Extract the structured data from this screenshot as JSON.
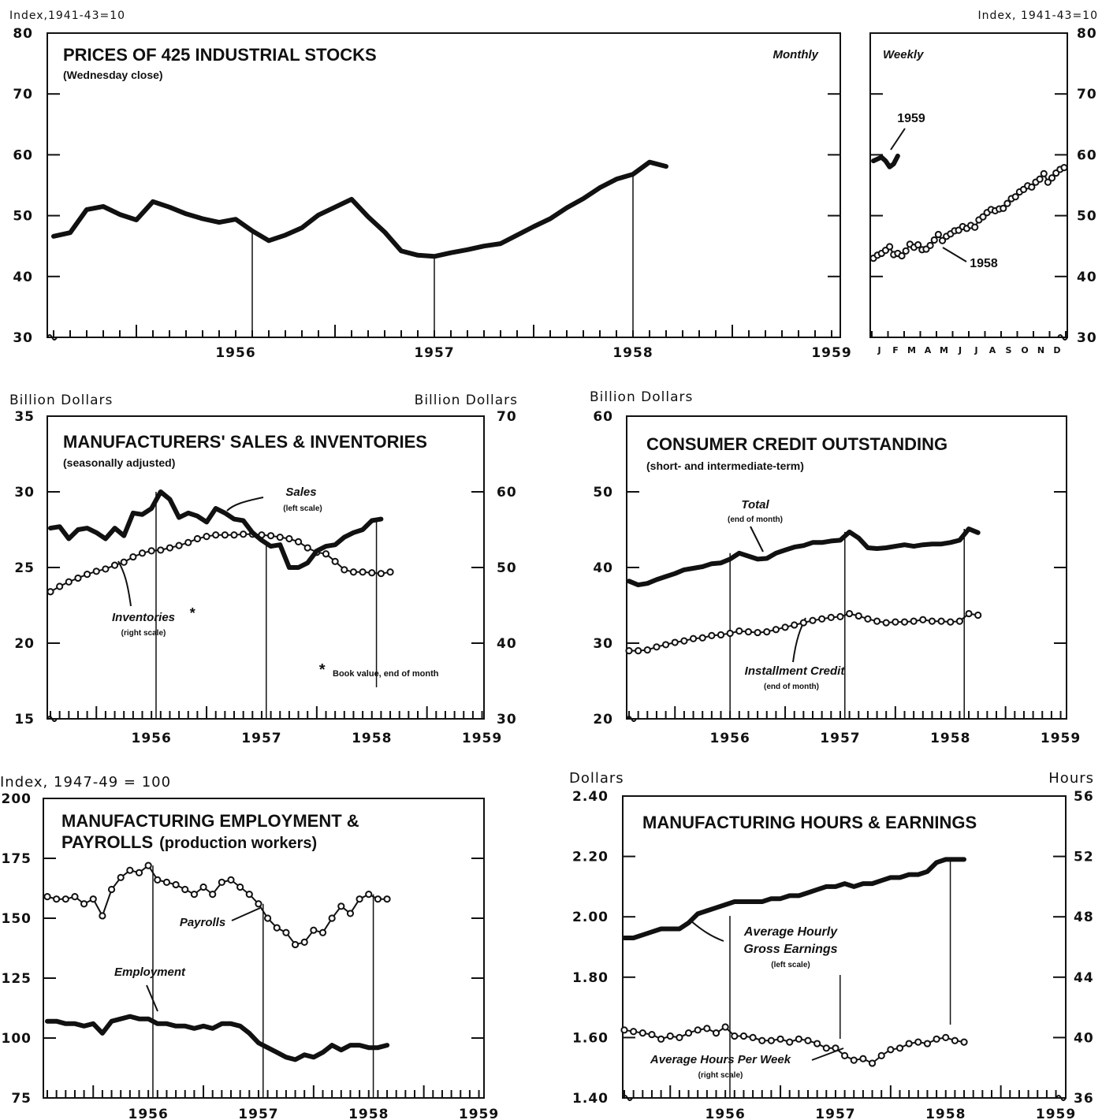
{
  "charts": {
    "stocks": {
      "title": "PRICES OF 425 INDUSTRIAL STOCKS",
      "subtitle": "(Wednesday close)",
      "left_unit": "Index,1941-43=10",
      "right_unit": "Index, 1941-43=10",
      "monthly_label": "Monthly",
      "weekly_label": "Weekly",
      "label_1959": "1959",
      "label_1958": "1958",
      "yticks": [
        "30",
        "40",
        "50",
        "60",
        "70",
        "80"
      ],
      "years": [
        "1956",
        "1957",
        "1958",
        "1959"
      ],
      "months": [
        "J",
        "F",
        "M",
        "A",
        "M",
        "J",
        "J",
        "A",
        "S",
        "O",
        "N",
        "D"
      ]
    },
    "sales": {
      "title": "MANUFACTURERS' SALES & INVENTORIES",
      "subtitle": "(seasonally adjusted)",
      "left_unit": "Billion Dollars",
      "right_unit": "Billion Dollars",
      "left_ticks": [
        "15",
        "20",
        "25",
        "30",
        "35"
      ],
      "right_ticks": [
        "30",
        "40",
        "50",
        "60",
        "70"
      ],
      "sales_label": "Sales",
      "sales_note": "(left scale)",
      "inv_label": "Inventories",
      "inv_star": "*",
      "inv_note": "(right scale)",
      "footnote_star": "*",
      "footnote": "Book value, end of month",
      "years": [
        "1956",
        "1957",
        "1958",
        "1959"
      ]
    },
    "credit": {
      "title": "CONSUMER CREDIT OUTSTANDING",
      "subtitle": "(short- and intermediate-term)",
      "left_unit": "Billion Dollars",
      "left_ticks": [
        "20",
        "30",
        "40",
        "50",
        "60"
      ],
      "total_label": "Total",
      "total_note": "(end of month)",
      "inst_label": "Installment Credit",
      "inst_note": "(end of month)",
      "years": [
        "1956",
        "1957",
        "1958",
        "1959"
      ]
    },
    "employment": {
      "title1": "MANUFACTURING EMPLOYMENT &",
      "title2": "PAYROLLS",
      "title2b": "(production workers)",
      "left_unit": "Index, 1947-49 = 100",
      "left_ticks": [
        "75",
        "100",
        "125",
        "150",
        "175",
        "200"
      ],
      "payrolls_label": "Payrolls",
      "employment_label": "Employment",
      "years": [
        "1956",
        "1957",
        "1958",
        "1959"
      ]
    },
    "hours": {
      "title": "MANUFACTURING HOURS & EARNINGS",
      "left_unit": "Dollars",
      "right_unit": "Hours",
      "left_ticks": [
        "1.40",
        "1.60",
        "1.80",
        "2.00",
        "2.20",
        "2.40"
      ],
      "right_ticks": [
        "36",
        "40",
        "44",
        "48",
        "52",
        "56"
      ],
      "earn_label1": "Average Hourly",
      "earn_label2": "Gross Earnings",
      "earn_note": "(left scale)",
      "hours_label": "Average Hours Per Week",
      "hours_note": "(right scale)",
      "years": [
        "1956",
        "1957",
        "1958",
        "1959"
      ]
    }
  },
  "chart_data": [
    {
      "type": "line",
      "title": "PRICES OF 425 INDUSTRIAL STOCKS (Monthly)",
      "ylabel": "Index,1941-43=10",
      "ylim": [
        30,
        80
      ],
      "x_start": "1955-08",
      "series": [
        {
          "name": "Monthly",
          "values": [
            46.6,
            47.2,
            51.0,
            51.5,
            50.2,
            49.3,
            52.3,
            51.4,
            50.3,
            49.5,
            48.9,
            49.4,
            47.5,
            45.9,
            46.8,
            48.0,
            50.1,
            51.4,
            52.7,
            49.8,
            47.3,
            44.2,
            43.5,
            43.3,
            43.9,
            44.4,
            45.0,
            45.4,
            46.8,
            48.2,
            49.5,
            51.3,
            52.8,
            54.6,
            56.0,
            56.8,
            58.8,
            58.1
          ]
        }
      ]
    },
    {
      "type": "line",
      "title": "PRICES OF 425 INDUSTRIAL STOCKS (Weekly)",
      "ylabel": "Index, 1941-43=10",
      "ylim": [
        30,
        80
      ],
      "series": [
        {
          "name": "1958",
          "values": [
            43.0,
            43.5,
            43.8,
            44.3,
            44.9,
            43.6,
            43.8,
            43.4,
            44.2,
            45.3,
            44.8,
            45.2,
            44.4,
            44.5,
            45.1,
            46.0,
            46.9,
            45.9,
            46.6,
            47.0,
            47.5,
            47.6,
            48.2,
            47.9,
            48.4,
            48.1,
            49.3,
            49.8,
            50.5,
            51.0,
            50.8,
            51.1,
            51.2,
            52.0,
            52.8,
            53.1,
            53.9,
            54.3,
            54.9,
            54.7,
            55.5,
            56.0,
            56.9,
            55.5,
            56.2,
            57.0,
            57.6,
            57.9
          ]
        },
        {
          "name": "1959",
          "values": [
            59.0,
            59.3,
            59.6,
            59.0,
            58.0,
            58.5,
            59.8
          ]
        }
      ]
    },
    {
      "type": "line",
      "title": "MANUFACTURERS' SALES & INVENTORIES",
      "x_start": "1955-08",
      "series": [
        {
          "name": "Sales",
          "axis": "left",
          "ylim": [
            15,
            35
          ],
          "values": [
            27.6,
            27.7,
            26.9,
            27.5,
            27.6,
            27.3,
            26.9,
            27.6,
            27.1,
            28.6,
            28.5,
            28.9,
            30.0,
            29.5,
            28.3,
            28.6,
            28.4,
            28.0,
            28.9,
            28.6,
            28.2,
            28.1,
            27.3,
            26.8,
            26.4,
            26.5,
            25.0,
            25.0,
            25.3,
            26.1,
            26.4,
            26.5,
            27.0,
            27.3,
            27.5,
            28.1,
            28.2
          ]
        },
        {
          "name": "Inventories",
          "axis": "right",
          "ylim": [
            30,
            70
          ],
          "values": [
            46.8,
            47.5,
            48.1,
            48.6,
            49.1,
            49.5,
            49.8,
            50.3,
            50.7,
            51.4,
            51.9,
            52.2,
            52.3,
            52.6,
            52.9,
            53.3,
            53.8,
            54.1,
            54.3,
            54.3,
            54.3,
            54.4,
            54.4,
            54.3,
            54.2,
            54.0,
            53.8,
            53.4,
            52.6,
            52.0,
            51.8,
            50.8,
            49.7,
            49.4,
            49.4,
            49.3,
            49.2,
            49.4
          ]
        }
      ]
    },
    {
      "type": "line",
      "title": "CONSUMER CREDIT OUTSTANDING",
      "ylabel": "Billion Dollars",
      "ylim": [
        20,
        60
      ],
      "x_start": "1955-08",
      "series": [
        {
          "name": "Total",
          "values": [
            38.2,
            37.7,
            37.9,
            38.4,
            38.8,
            39.2,
            39.7,
            39.9,
            40.1,
            40.5,
            40.6,
            41.1,
            41.9,
            41.5,
            41.1,
            41.2,
            41.9,
            42.3,
            42.7,
            42.9,
            43.3,
            43.3,
            43.5,
            43.6,
            44.7,
            43.9,
            42.6,
            42.5,
            42.6,
            42.8,
            43.0,
            42.8,
            43.0,
            43.1,
            43.1,
            43.3,
            43.6,
            45.1,
            44.6
          ]
        },
        {
          "name": "Installment Credit",
          "values": [
            29.0,
            29.0,
            29.1,
            29.5,
            29.8,
            30.1,
            30.3,
            30.6,
            30.7,
            31.0,
            31.1,
            31.3,
            31.6,
            31.5,
            31.4,
            31.5,
            31.8,
            32.1,
            32.4,
            32.7,
            33.0,
            33.2,
            33.4,
            33.5,
            33.9,
            33.6,
            33.2,
            32.9,
            32.7,
            32.8,
            32.8,
            32.9,
            33.1,
            32.9,
            32.9,
            32.8,
            32.9,
            33.9,
            33.7
          ]
        }
      ]
    },
    {
      "type": "line",
      "title": "MANUFACTURING EMPLOYMENT & PAYROLLS (production workers)",
      "ylabel": "Index, 1947-49 = 100",
      "ylim": [
        75,
        200
      ],
      "x_start": "1955-08",
      "series": [
        {
          "name": "Payrolls",
          "values": [
            159,
            158,
            158,
            159,
            156,
            158,
            151,
            162,
            167,
            170,
            169,
            172,
            166,
            165,
            164,
            162,
            160,
            163,
            160,
            165,
            166,
            163,
            160,
            156,
            150,
            146,
            144,
            139,
            140,
            145,
            144,
            150,
            155,
            152,
            158,
            160,
            158,
            158
          ]
        },
        {
          "name": "Employment",
          "values": [
            107,
            107,
            106,
            106,
            105,
            106,
            102,
            107,
            108,
            109,
            108,
            108,
            106,
            106,
            105,
            105,
            104,
            105,
            104,
            106,
            106,
            105,
            102,
            98,
            96,
            94,
            92,
            91,
            93,
            92,
            94,
            97,
            95,
            97,
            97,
            96,
            96,
            97
          ]
        }
      ]
    },
    {
      "type": "line",
      "title": "MANUFACTURING HOURS & EARNINGS",
      "x_start": "1955-08",
      "series": [
        {
          "name": "Average Hourly Gross Earnings",
          "axis": "left",
          "ylabel": "Dollars",
          "ylim": [
            1.4,
            2.4
          ],
          "values": [
            1.93,
            1.93,
            1.94,
            1.95,
            1.96,
            1.96,
            1.96,
            1.98,
            2.01,
            2.02,
            2.03,
            2.04,
            2.05,
            2.05,
            2.05,
            2.05,
            2.06,
            2.06,
            2.07,
            2.07,
            2.08,
            2.09,
            2.1,
            2.1,
            2.11,
            2.1,
            2.11,
            2.11,
            2.12,
            2.13,
            2.13,
            2.14,
            2.14,
            2.15,
            2.18,
            2.19,
            2.19,
            2.19
          ]
        },
        {
          "name": "Average Hours Per Week",
          "axis": "right",
          "ylabel": "Hours",
          "ylim": [
            36,
            56
          ],
          "values": [
            40.5,
            40.4,
            40.3,
            40.2,
            39.9,
            40.1,
            40.0,
            40.3,
            40.5,
            40.6,
            40.3,
            40.7,
            40.1,
            40.1,
            40.0,
            39.8,
            39.8,
            39.9,
            39.7,
            39.9,
            39.8,
            39.6,
            39.3,
            39.3,
            38.8,
            38.5,
            38.6,
            38.3,
            38.8,
            39.2,
            39.3,
            39.6,
            39.7,
            39.6,
            39.9,
            40.0,
            39.8,
            39.7
          ]
        }
      ]
    }
  ]
}
